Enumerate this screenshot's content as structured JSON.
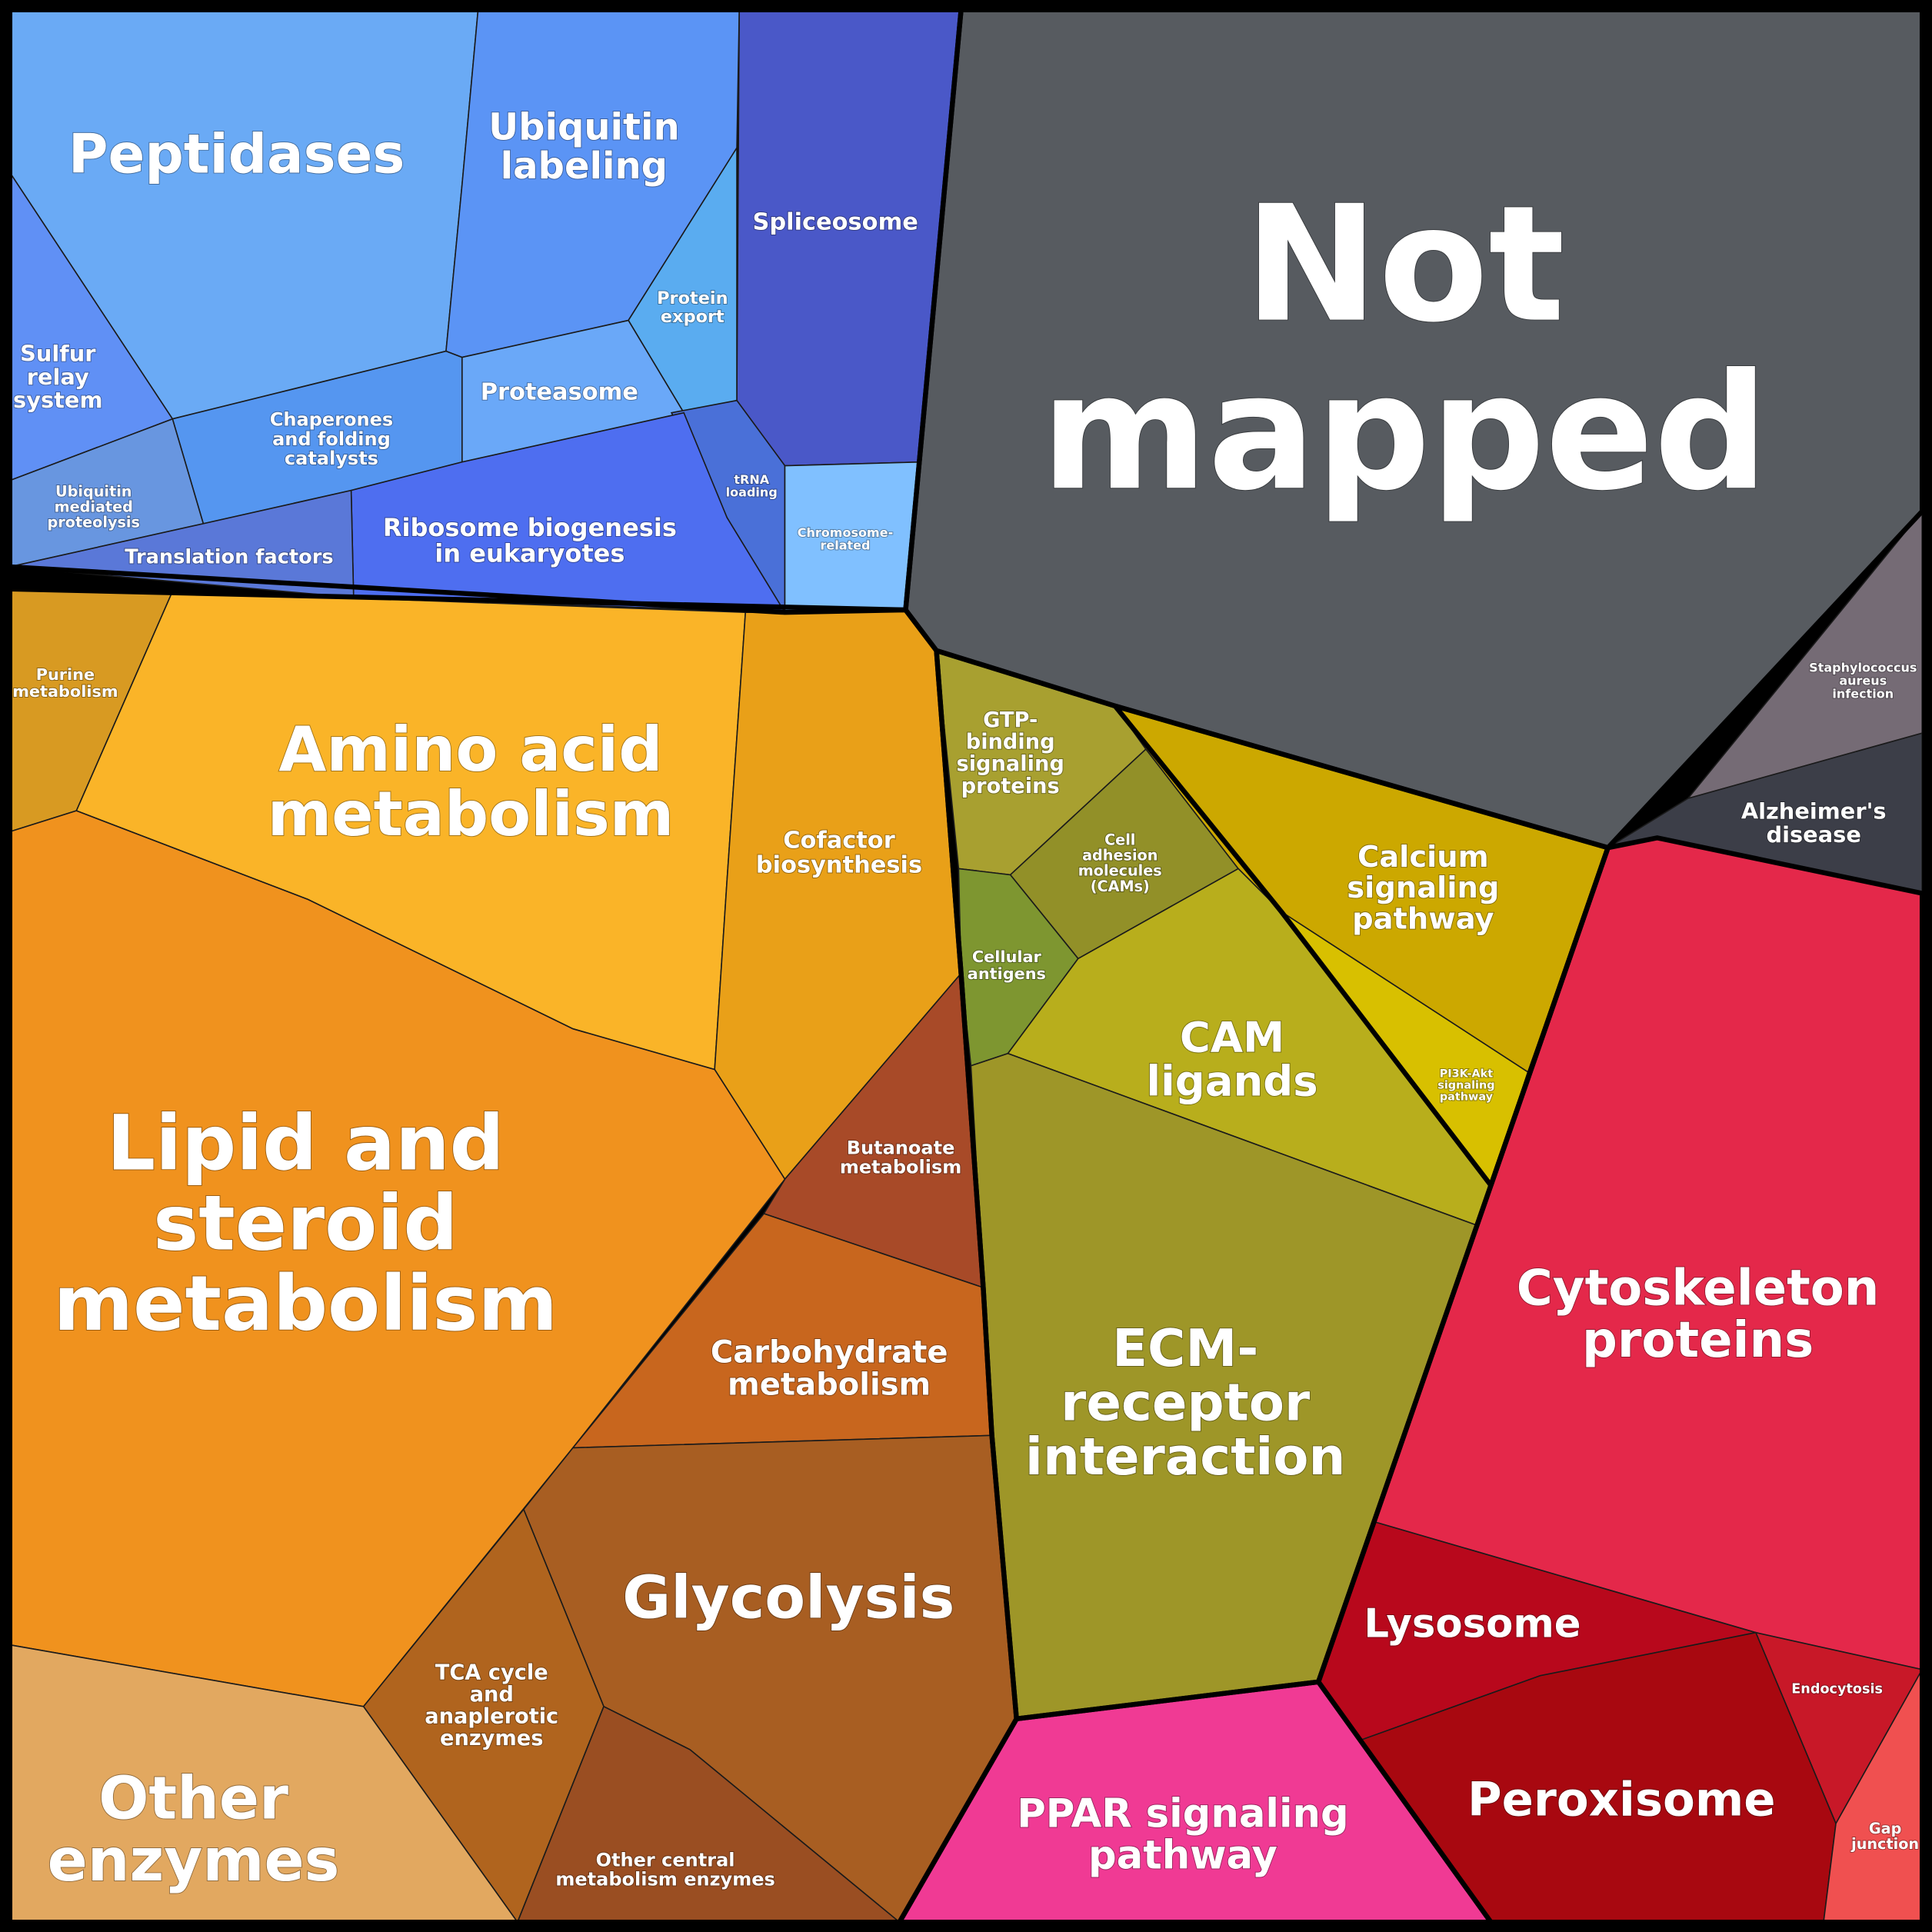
{
  "cells": [
    {
      "lines": [
        "Peptidases"
      ]
    },
    {
      "lines": [
        "Ubiquitin",
        "labeling"
      ]
    },
    {
      "lines": [
        "Spliceosome"
      ]
    },
    {
      "lines": [
        "Protein",
        "export"
      ]
    },
    {
      "lines": [
        "Sulfur",
        "relay",
        "system"
      ]
    },
    {
      "lines": [
        "Proteasome"
      ]
    },
    {
      "lines": [
        "Chaperones",
        "and folding",
        "catalysts"
      ]
    },
    {
      "lines": [
        "tRNA",
        "loading"
      ]
    },
    {
      "lines": [
        "Ubiquitin",
        "mediated",
        "proteolysis"
      ]
    },
    {
      "lines": [
        "Chromosome-",
        "related"
      ]
    },
    {
      "lines": [
        "Ribosome biogenesis",
        "in eukaryotes"
      ]
    },
    {
      "lines": [
        "Translation factors"
      ]
    },
    {
      "lines": [
        "Not",
        "mapped"
      ]
    },
    {
      "lines": [
        "Purine",
        "metabolism"
      ]
    },
    {
      "lines": [
        "Amino acid",
        "metabolism"
      ]
    },
    {
      "lines": [
        "Cofactor",
        "biosynthesis"
      ]
    },
    {
      "lines": [
        "Staphylococcus",
        "aureus",
        "infection"
      ]
    },
    {
      "lines": [
        "Alzheimer's",
        "disease"
      ]
    },
    {
      "lines": [
        "GTP-",
        "binding",
        "signaling",
        "proteins"
      ]
    },
    {
      "lines": [
        "Cell",
        "adhesion",
        "molecules",
        "(CAMs)"
      ]
    },
    {
      "lines": [
        "Calcium",
        "signaling",
        "pathway"
      ]
    },
    {
      "lines": [
        "Cellular",
        "antigens"
      ]
    },
    {
      "lines": [
        "CAM",
        "ligands"
      ]
    },
    {
      "lines": [
        "PI3K-Akt",
        "signaling",
        "pathway"
      ]
    },
    {
      "lines": [
        "Butanoate",
        "metabolism"
      ]
    },
    {
      "lines": [
        "Lipid and",
        "steroid",
        "metabolism"
      ]
    },
    {
      "lines": [
        "Cytoskeleton",
        "proteins"
      ]
    },
    {
      "lines": [
        "Carbohydrate",
        "metabolism"
      ]
    },
    {
      "lines": [
        "ECM-",
        "receptor",
        "interaction"
      ]
    },
    {
      "lines": [
        "Glycolysis"
      ]
    },
    {
      "lines": [
        "Lysosome"
      ]
    },
    {
      "lines": [
        "TCA cycle",
        "and",
        "anaplerotic",
        "enzymes"
      ]
    },
    {
      "lines": [
        "Other",
        "enzymes"
      ]
    },
    {
      "lines": [
        "PPAR signaling",
        "pathway"
      ]
    },
    {
      "lines": [
        "Endocytosis"
      ]
    },
    {
      "lines": [
        "Peroxisome"
      ]
    },
    {
      "lines": [
        "Gap",
        "junction"
      ]
    },
    {
      "lines": [
        "Other central",
        "metabolism enzymes"
      ]
    }
  ]
}
